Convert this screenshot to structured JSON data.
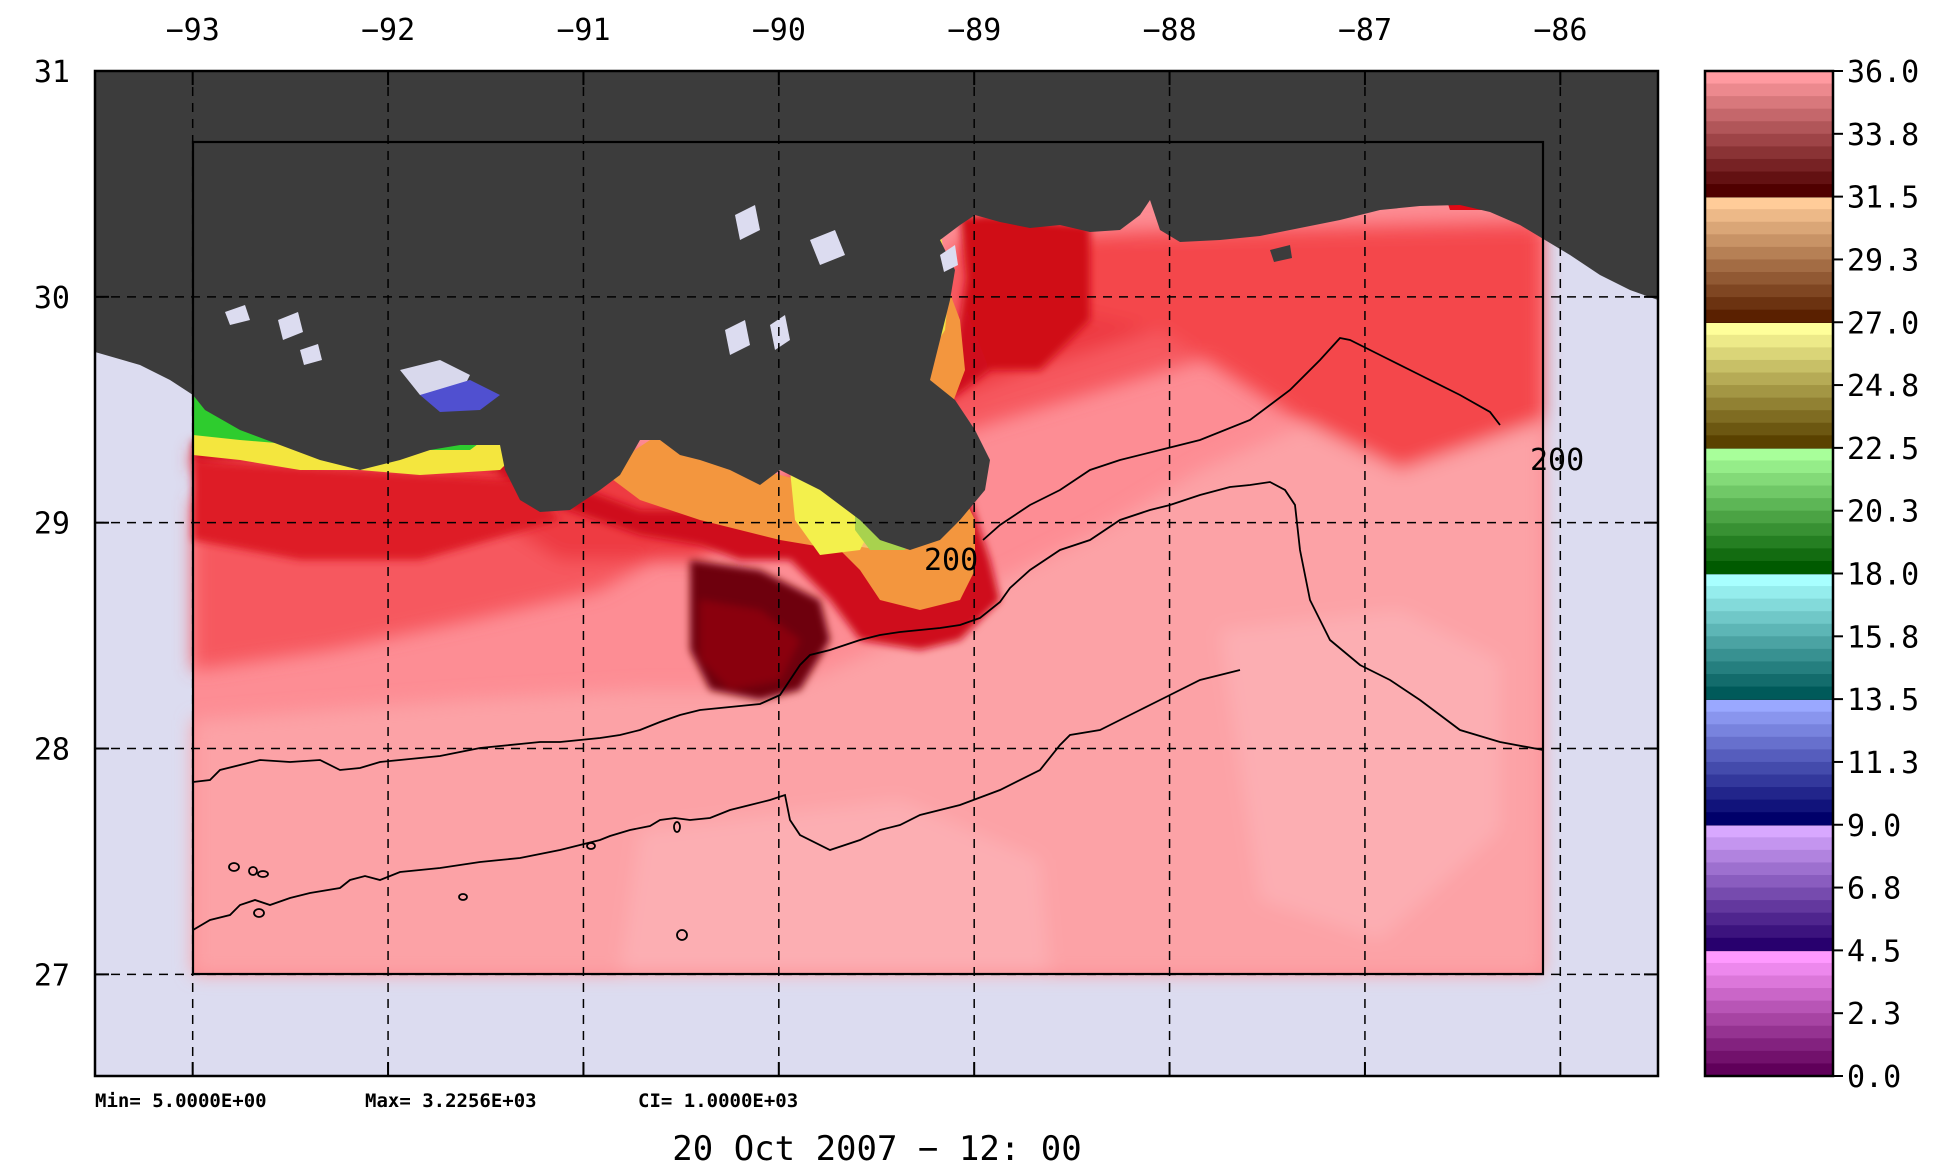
{
  "map": {
    "lon_ticks": [
      "−93",
      "−92",
      "−91",
      "−90",
      "−89",
      "−88",
      "−87",
      "−86"
    ],
    "lat_ticks": [
      "31",
      "30",
      "29",
      "28",
      "27"
    ],
    "lon_range": [
      -93.5,
      -85.5
    ],
    "lat_range": [
      26.55,
      31.0
    ],
    "contour_labels": [
      "200",
      "200"
    ],
    "stats": {
      "min": "Min= 5.0000E+00",
      "max": "Max= 3.2256E+03",
      "ci": "CI= 1.0000E+03"
    },
    "timestamp": "20 Oct 2007 − 12: 00",
    "colors": {
      "land": "#3c3c3c",
      "outside_domain": "#dcdcf0",
      "frame": "#000000"
    }
  },
  "colorbar": {
    "labels": [
      "36.0",
      "33.8",
      "31.5",
      "29.3",
      "27.0",
      "24.8",
      "22.5",
      "20.3",
      "18.0",
      "15.8",
      "13.5",
      "11.3",
      "9.0",
      "6.8",
      "4.5",
      "2.3",
      "0.0"
    ],
    "min": 0.0,
    "max": 36.0,
    "bands": [
      {
        "from": 0.0,
        "to": 4.5,
        "top": "#ff99ff",
        "bottom": "#60005a"
      },
      {
        "from": 4.5,
        "to": 9.0,
        "top": "#d8a8ff",
        "bottom": "#28006e"
      },
      {
        "from": 9.0,
        "to": 13.5,
        "top": "#9aa8ff",
        "bottom": "#00006a"
      },
      {
        "from": 13.5,
        "to": 18.0,
        "top": "#a8ffff",
        "bottom": "#005a5a"
      },
      {
        "from": 18.0,
        "to": 22.5,
        "top": "#a8ff9a",
        "bottom": "#005a00"
      },
      {
        "from": 22.5,
        "to": 27.0,
        "top": "#ffff9a",
        "bottom": "#5a4200"
      },
      {
        "from": 27.0,
        "to": 31.5,
        "top": "#ffcc99",
        "bottom": "#5a2000"
      },
      {
        "from": 31.5,
        "to": 36.0,
        "top": "#ff9aa0",
        "bottom": "#500000"
      }
    ]
  }
}
